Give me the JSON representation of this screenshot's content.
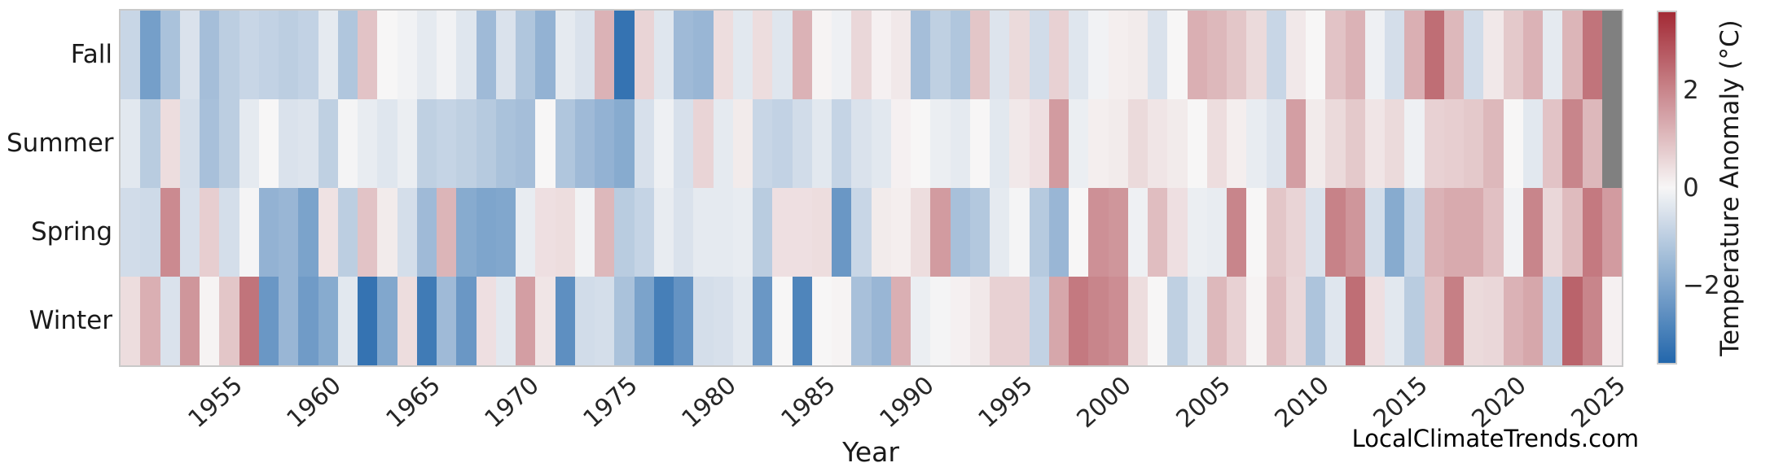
{
  "figure": {
    "xaxis_title": "Year",
    "watermark": "LocalClimateTrends.com",
    "row_labels": [
      "Fall",
      "Summer",
      "Spring",
      "Winter"
    ],
    "x_tick_labels": [
      "1955",
      "1960",
      "1965",
      "1970",
      "1975",
      "1980",
      "1985",
      "1990",
      "1995",
      "2000",
      "2005",
      "2010",
      "2015",
      "2020",
      "2025"
    ],
    "colorbar_tick_labels": [
      "2",
      "0",
      "−2"
    ]
  },
  "chart_data": {
    "type": "heatmap",
    "xlabel": "Year",
    "x_range": [
      1950,
      2025
    ],
    "x_ticks": [
      1955,
      1960,
      1965,
      1970,
      1975,
      1980,
      1985,
      1990,
      1995,
      2000,
      2005,
      2010,
      2015,
      2020,
      2025
    ],
    "rows": [
      "Fall",
      "Summer",
      "Spring",
      "Winter"
    ],
    "colorbar": {
      "label": "Temperature Anomaly (°C)",
      "ticks": [
        2,
        0,
        -2
      ],
      "vmin": -3.6,
      "vmax": 3.6,
      "colormap": "diverging blue-white-red (vlag-like)"
    },
    "colors": {
      "negative_end": "#2367ac",
      "midpoint": "#f7f6f6",
      "positive_end": "#a32a35",
      "missing": "#808080",
      "plot_border": "#c9c9c9"
    },
    "missing_data_years": {
      "Fall": [
        2025
      ],
      "Summer": [
        2025
      ]
    },
    "x": [
      1950,
      1951,
      1952,
      1953,
      1954,
      1955,
      1956,
      1957,
      1958,
      1959,
      1960,
      1961,
      1962,
      1963,
      1964,
      1965,
      1966,
      1967,
      1968,
      1969,
      1970,
      1971,
      1972,
      1973,
      1974,
      1975,
      1976,
      1977,
      1978,
      1979,
      1980,
      1981,
      1982,
      1983,
      1984,
      1985,
      1986,
      1987,
      1988,
      1989,
      1990,
      1991,
      1992,
      1993,
      1994,
      1995,
      1996,
      1997,
      1998,
      1999,
      2000,
      2001,
      2002,
      2003,
      2004,
      2005,
      2006,
      2007,
      2008,
      2009,
      2010,
      2011,
      2012,
      2013,
      2014,
      2015,
      2016,
      2017,
      2018,
      2019,
      2020,
      2021,
      2022,
      2023,
      2024,
      2025
    ],
    "series": [
      {
        "name": "Fall",
        "values": [
          -0.8,
          -2.2,
          -1.3,
          -0.5,
          -1.4,
          -1.0,
          -0.8,
          -0.9,
          -1.0,
          -0.9,
          -0.3,
          -1.2,
          0.9,
          0.0,
          -0.1,
          -0.3,
          -0.1,
          -0.4,
          -1.5,
          -0.5,
          -1.2,
          -1.7,
          -0.3,
          -0.5,
          1.2,
          -3.3,
          0.6,
          -0.4,
          -1.5,
          -1.6,
          0.45,
          -0.35,
          0.45,
          -0.4,
          1.2,
          0.05,
          -0.15,
          0.55,
          0.1,
          0.25,
          -1.4,
          -0.95,
          -1.2,
          0.85,
          -0.45,
          0.5,
          -0.65,
          0.65,
          -0.4,
          -0.1,
          0.15,
          0.2,
          -0.5,
          0.0,
          1.25,
          1.1,
          0.85,
          0.5,
          -0.8,
          0.25,
          0.0,
          0.9,
          1.2,
          -0.15,
          -0.6,
          1.25,
          2.4,
          1.1,
          -0.65,
          0.25,
          0.8,
          1.2,
          -0.3,
          1.15,
          2.3,
          null
        ]
      },
      {
        "name": "Summer",
        "values": [
          -0.35,
          -1.05,
          0.45,
          -0.6,
          -1.35,
          -1.0,
          -0.3,
          0.0,
          -0.5,
          -0.45,
          -0.95,
          -0.05,
          -0.25,
          -0.4,
          -0.2,
          -0.95,
          -0.85,
          -0.95,
          -1.1,
          -1.3,
          -1.4,
          0.0,
          -1.2,
          -1.5,
          -1.7,
          -1.9,
          -0.55,
          -0.15,
          -0.55,
          0.6,
          -0.3,
          0.2,
          -0.8,
          -0.9,
          -0.65,
          -0.35,
          -0.85,
          -0.5,
          -0.35,
          0.1,
          0.0,
          -0.2,
          -0.3,
          0.0,
          -0.35,
          0.25,
          0.4,
          1.6,
          -0.2,
          0.15,
          0.2,
          0.5,
          0.3,
          0.2,
          0.0,
          0.45,
          0.15,
          -0.25,
          -0.45,
          1.55,
          0.2,
          0.5,
          0.8,
          0.3,
          0.5,
          -0.15,
          0.65,
          0.7,
          0.8,
          1.1,
          0.0,
          -0.35,
          0.9,
          2.0,
          1.1,
          null
        ]
      },
      {
        "name": "Spring",
        "values": [
          -0.65,
          -0.7,
          1.9,
          -0.55,
          0.7,
          -0.6,
          -0.05,
          -1.7,
          -1.6,
          -2.1,
          0.35,
          -1.0,
          0.9,
          0.2,
          -0.6,
          -1.5,
          1.15,
          -1.9,
          -2.05,
          -2.0,
          -0.25,
          0.4,
          0.45,
          -0.1,
          1.1,
          -1.05,
          -0.85,
          -0.25,
          -0.5,
          -0.3,
          -0.3,
          -0.25,
          -1.05,
          0.4,
          0.4,
          0.45,
          -2.4,
          -0.8,
          0.2,
          0.15,
          0.45,
          1.6,
          -1.35,
          -1.15,
          -0.3,
          -0.05,
          -1.1,
          -1.6,
          0.0,
          1.8,
          1.7,
          -0.15,
          1.0,
          0.4,
          -0.2,
          -0.25,
          2.0,
          0.0,
          0.85,
          0.6,
          -0.5,
          2.05,
          1.7,
          -0.6,
          -1.9,
          -0.8,
          1.2,
          1.35,
          1.35,
          0.95,
          -0.1,
          2.0,
          0.55,
          1.05,
          2.2,
          1.6
        ]
      },
      {
        "name": "Winter",
        "values": [
          0.45,
          1.25,
          -0.5,
          1.7,
          0.05,
          0.85,
          2.3,
          -2.4,
          -1.6,
          -2.3,
          -1.9,
          -0.35,
          -3.3,
          -2.0,
          0.45,
          -3.1,
          -1.5,
          -2.4,
          0.4,
          -0.35,
          1.55,
          0.3,
          -2.6,
          -0.65,
          -0.6,
          -1.3,
          -2.1,
          -3.0,
          -2.5,
          -0.6,
          -0.55,
          -0.35,
          -2.4,
          0.0,
          -2.85,
          0.0,
          0.05,
          -1.35,
          -1.6,
          1.25,
          -0.2,
          -0.05,
          0.1,
          0.25,
          0.65,
          0.65,
          -0.9,
          1.4,
          2.2,
          2.0,
          1.85,
          0.45,
          0.0,
          -0.95,
          -0.35,
          1.1,
          0.65,
          0.05,
          1.0,
          0.55,
          -1.25,
          -0.4,
          2.4,
          0.4,
          -0.35,
          -1.05,
          0.95,
          2.1,
          0.5,
          0.55,
          1.2,
          1.4,
          -0.85,
          2.6,
          2.0,
          0.1
        ]
      }
    ]
  }
}
